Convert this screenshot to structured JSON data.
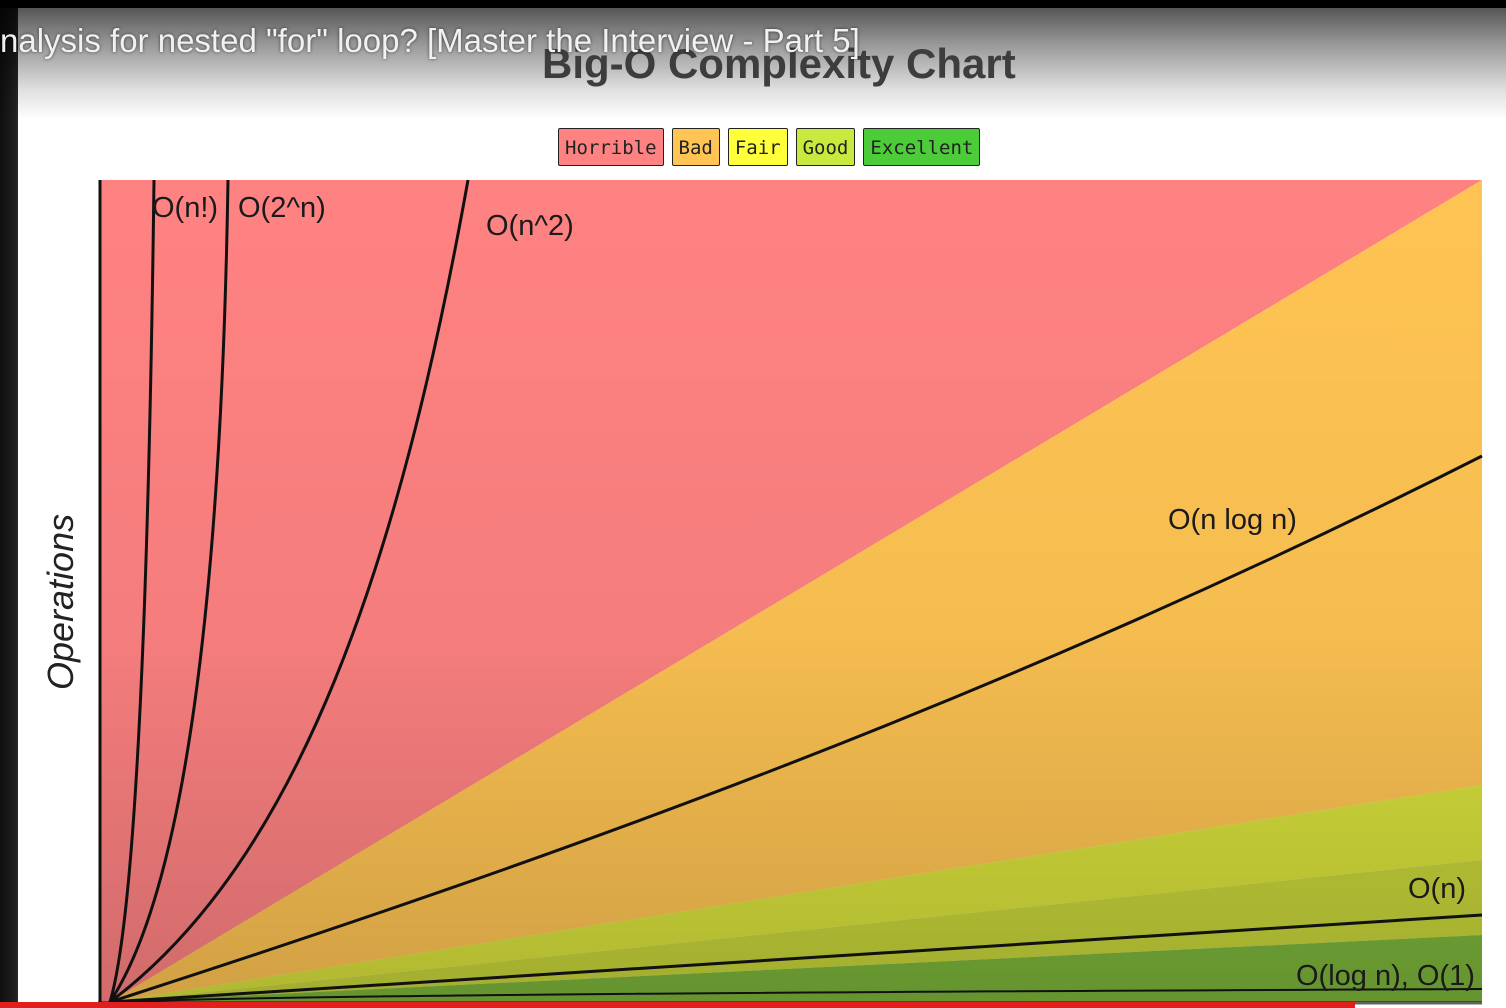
{
  "video": {
    "title": "nalysis for nested \"for\" loop? [Master the Interview - Part 5]",
    "progress_fraction": 0.9
  },
  "chart_data": {
    "type": "line",
    "title": "Big-O Complexity Chart",
    "xlabel": "",
    "ylabel": "Operations",
    "legend": {
      "placement": "top-center",
      "entries": [
        {
          "label": "Horrible",
          "color": "#ff8282"
        },
        {
          "label": "Bad",
          "color": "#ffc453"
        },
        {
          "label": "Fair",
          "color": "#ffff3a"
        },
        {
          "label": "Good",
          "color": "#c8ea3e"
        },
        {
          "label": "Excellent",
          "color": "#4ccc38"
        }
      ]
    },
    "regions": [
      {
        "name": "Horrible",
        "color": "#ff8282"
      },
      {
        "name": "Bad",
        "color": "#ffc453"
      },
      {
        "name": "Fair",
        "color": "#d9e23c"
      },
      {
        "name": "Good",
        "color": "#c7d63c"
      },
      {
        "name": "Excellent",
        "color": "#7fba3a"
      }
    ],
    "series": [
      {
        "name": "O(n!)",
        "label": "O(n!)"
      },
      {
        "name": "O(2^n)",
        "label": "O(2^n)"
      },
      {
        "name": "O(n^2)",
        "label": "O(n^2)"
      },
      {
        "name": "O(n log n)",
        "label": "O(n log n)"
      },
      {
        "name": "O(n)",
        "label": "O(n)"
      },
      {
        "name": "O(log n), O(1)",
        "label": "O(log n), O(1)"
      }
    ],
    "grid": false
  }
}
